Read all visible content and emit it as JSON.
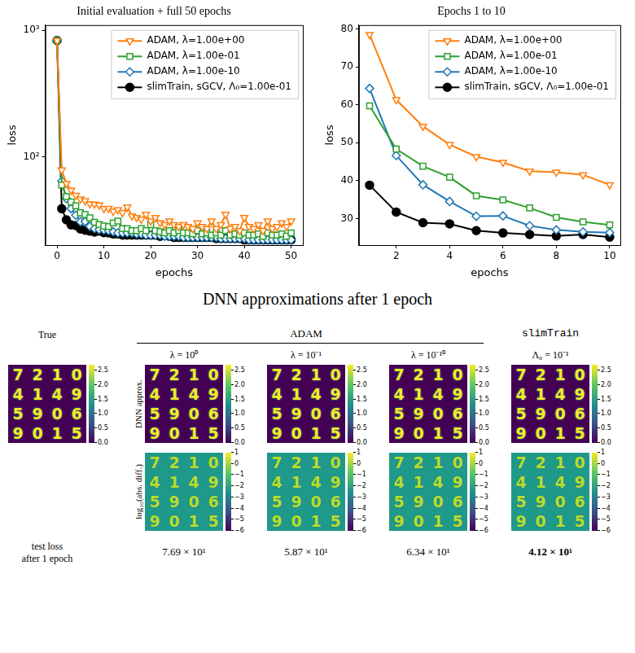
{
  "chart_data": [
    {
      "type": "line",
      "title": "Initial evaluation + full 50 epochs",
      "x_label": "epochs",
      "y_label": "loss",
      "log": "y",
      "grid": false,
      "legend": "upper right",
      "xlim": [
        -2.5,
        52.5
      ],
      "xticks": [
        0,
        10,
        20,
        30,
        40,
        50
      ],
      "ylim": [
        20,
        1100
      ],
      "yticks": [
        {
          "value": 100,
          "label": "10²"
        },
        {
          "value": 1000,
          "label": "10³"
        }
      ],
      "x": [
        0,
        1,
        2,
        3,
        4,
        5,
        6,
        7,
        8,
        9,
        10,
        11,
        12,
        13,
        14,
        15,
        16,
        17,
        18,
        19,
        20,
        21,
        22,
        23,
        24,
        25,
        26,
        27,
        28,
        29,
        30,
        31,
        32,
        33,
        34,
        35,
        36,
        37,
        38,
        39,
        40,
        41,
        42,
        43,
        44,
        45,
        46,
        47,
        48,
        49,
        50
      ],
      "series": [
        {
          "name": "ADAM, λ=1.00e+00",
          "color": "#ff7f0e",
          "marker": "triangle_down",
          "values": [
            830,
            78.5,
            61.3,
            54.3,
            49.5,
            46.3,
            44.8,
            42.5,
            42.2,
            41.5,
            38.9,
            39,
            37,
            38,
            36,
            40,
            34,
            33,
            32,
            35,
            31,
            33,
            30,
            29,
            31,
            29,
            28,
            29,
            28,
            27,
            30,
            28,
            27,
            31,
            27,
            29,
            35,
            27,
            28,
            26,
            33,
            28,
            27,
            29,
            26,
            31,
            27,
            28,
            30,
            28,
            31
          ]
        },
        {
          "name": "ADAM, λ=1.00e-01",
          "color": "#2ca02c",
          "marker": "square",
          "values": [
            830,
            59.7,
            48.3,
            43.8,
            40.9,
            36,
            34.9,
            32.8,
            30.3,
            29.1,
            28.3,
            28,
            30,
            31,
            27,
            27,
            26,
            26,
            27,
            26,
            29,
            26,
            25.5,
            25,
            26,
            25,
            26,
            25,
            25,
            24.5,
            26,
            24.5,
            25,
            24,
            25,
            24,
            26,
            24,
            24.5,
            24,
            25,
            24,
            24,
            24.5,
            23.5,
            25,
            24,
            24,
            24.5,
            23.5,
            25
          ]
        },
        {
          "name": "ADAM, λ=1.00e-10",
          "color": "#1f77b4",
          "marker": "diamond",
          "values": [
            830,
            64.3,
            46.6,
            38.9,
            34.5,
            30.6,
            30.7,
            28.1,
            27,
            26.5,
            26.3,
            26,
            25.5,
            25,
            25,
            25,
            25,
            24.5,
            24.5,
            24,
            24,
            24,
            24,
            23.5,
            23.5,
            23.5,
            23.5,
            23,
            23,
            23,
            23,
            23,
            23,
            23,
            23,
            22.5,
            22.5,
            22.5,
            22.5,
            22.5,
            22.5,
            22,
            22,
            22,
            22,
            22,
            22,
            22,
            22,
            22,
            22
          ]
        },
        {
          "name": "slimTrain, sGCV, Λ₀=1.00e-01",
          "color": "#000000",
          "marker": "circle",
          "values": [
            830,
            38.8,
            31.7,
            28.9,
            28.6,
            26.8,
            26.2,
            25.8,
            25.4,
            25.8,
            25.1,
            25,
            24.5,
            24.5,
            24,
            24,
            24,
            24,
            24,
            24,
            24,
            24,
            23.5,
            24,
            23.5,
            23,
            23,
            23,
            23,
            23,
            23,
            23,
            23,
            23,
            22.5,
            22.5,
            22.5,
            22.5,
            22.5,
            22.5,
            22,
            22,
            22,
            22,
            22,
            22,
            22,
            22,
            22,
            22,
            22
          ]
        }
      ]
    },
    {
      "type": "line",
      "title": "Epochs 1 to 10",
      "x_label": "epochs",
      "y_label": "loss",
      "grid": false,
      "legend": "upper right",
      "xlim": [
        0.6,
        10.4
      ],
      "xticks": [
        2,
        4,
        6,
        8,
        10
      ],
      "ylim": [
        23,
        81
      ],
      "yticks": [
        30,
        40,
        50,
        60,
        70,
        80
      ],
      "x": [
        1,
        2,
        3,
        4,
        5,
        6,
        7,
        8,
        9,
        10
      ],
      "series": [
        {
          "name": "ADAM, λ=1.00e+00",
          "color": "#ff7f0e",
          "marker": "triangle_down",
          "values": [
            78.5,
            61.3,
            54.3,
            49.5,
            46.3,
            44.8,
            42.5,
            42.2,
            41.5,
            38.9
          ]
        },
        {
          "name": "ADAM, λ=1.00e-01",
          "color": "#2ca02c",
          "marker": "square",
          "values": [
            59.7,
            48.3,
            43.8,
            40.9,
            36,
            34.9,
            32.8,
            30.3,
            29.1,
            28.3
          ]
        },
        {
          "name": "ADAM, λ=1.00e-10",
          "color": "#1f77b4",
          "marker": "diamond",
          "values": [
            64.3,
            46.6,
            38.9,
            34.5,
            30.6,
            30.7,
            28.1,
            27,
            26.5,
            26.3
          ]
        },
        {
          "name": "slimTrain, sGCV, Λ₀=1.00e-01",
          "color": "#000000",
          "marker": "circle",
          "values": [
            38.8,
            31.7,
            28.9,
            28.6,
            26.8,
            26.2,
            25.8,
            25.4,
            25.8,
            25.1
          ]
        }
      ]
    }
  ],
  "panel_grid": {
    "title": "DNN approximations after 1 epoch",
    "true_header": "True",
    "row_labels": [
      "DNN approx.",
      "log₁₀(abs. diff.)"
    ],
    "digits": [
      [
        "7",
        "2",
        "1",
        "0"
      ],
      [
        "4",
        "1",
        "4",
        "9"
      ],
      [
        "5",
        "9",
        "0",
        "6"
      ],
      [
        "9",
        "0",
        "1",
        "5"
      ]
    ],
    "test_loss_label": [
      "test loss",
      "after 1 epoch"
    ],
    "groups": [
      {
        "header": "ADAM",
        "columns": [
          {
            "header": "λ = 10⁰",
            "test_loss": {
              "value": 76.9,
              "label": "7.69 × 10¹"
            }
          },
          {
            "header": "λ = 10⁻¹",
            "test_loss": {
              "value": 58.7,
              "label": "5.87 × 10¹"
            }
          },
          {
            "header": "λ = 10⁻¹⁰",
            "test_loss": {
              "value": 63.4,
              "label": "6.34 × 10¹"
            }
          }
        ]
      },
      {
        "header": "slimTrain",
        "columns": [
          {
            "header": "Λ₀ = 10⁻¹",
            "test_loss": {
              "value": 41.2,
              "label": "4.12 × 10¹"
            }
          }
        ]
      }
    ],
    "colorbars": {
      "approx": {
        "range": [
          0,
          2.7
        ],
        "ticks": [
          {
            "value": 0,
            "label": "0.0"
          },
          {
            "value": 0.5,
            "label": "0.5"
          },
          {
            "value": 1,
            "label": "1.0"
          },
          {
            "value": 1.5,
            "label": "1.5"
          },
          {
            "value": 2,
            "label": "2.0"
          },
          {
            "value": 2.5,
            "label": "2.5"
          }
        ]
      },
      "error": {
        "range": [
          -6,
          1
        ],
        "ticks": [
          1,
          0,
          -1,
          -2,
          -3,
          -4,
          -5,
          -6
        ]
      }
    }
  }
}
